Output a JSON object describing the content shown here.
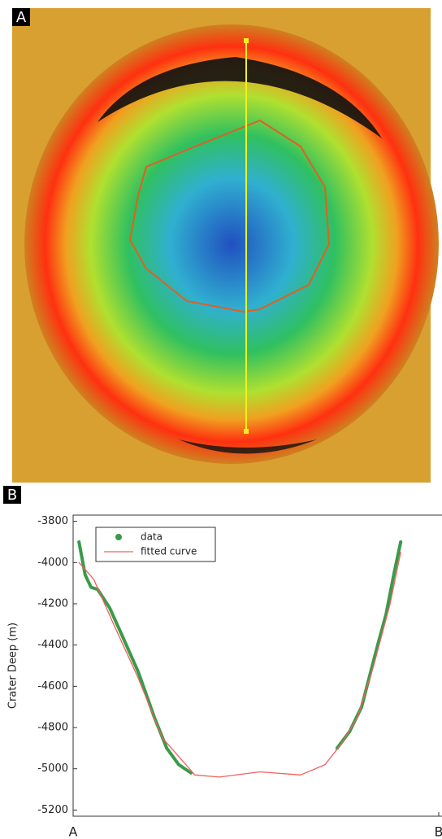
{
  "panel_labels": [
    "A",
    "B"
  ],
  "chart_data": {
    "type": "line",
    "ylabel": "Crater Deep (m)",
    "xlim": [
      0,
      1
    ],
    "xticks": [
      {
        "value": 0,
        "label": "A"
      },
      {
        "value": 1,
        "label": "B"
      }
    ],
    "ylim": [
      -5230,
      -3770
    ],
    "yticks": [
      -3800,
      -4000,
      -4200,
      -4400,
      -4600,
      -4800,
      -5000,
      -5200
    ],
    "legend": "upper left",
    "series": [
      {
        "name": "data",
        "color": "#3a9a4a",
        "x": [
          0.016,
          0.033,
          0.049,
          0.067,
          0.1,
          0.133,
          0.178,
          0.222,
          0.256,
          0.289,
          0.322,
          0.5,
          0.722,
          0.756,
          0.789,
          0.811,
          0.833,
          0.856,
          0.878,
          0.896
        ],
        "values": [
          -3900,
          -4060,
          -4120,
          -4130,
          -4220,
          -4350,
          -4530,
          -4750,
          -4900,
          -4980,
          -5020,
          null,
          -4900,
          -4820,
          -4700,
          -4550,
          -4400,
          -4250,
          -4050,
          -3900
        ]
      },
      {
        "name": "fitted curve",
        "color": "#f06060",
        "x": [
          0.016,
          0.056,
          0.111,
          0.178,
          0.244,
          0.333,
          0.4,
          0.511,
          0.622,
          0.689,
          0.733,
          0.778,
          0.822,
          0.867,
          0.896
        ],
        "values": [
          -4000,
          -4080,
          -4300,
          -4560,
          -4850,
          -5030,
          -5040,
          -5015,
          -5030,
          -4980,
          -4880,
          -4750,
          -4500,
          -4200,
          -3950
        ]
      }
    ]
  }
}
